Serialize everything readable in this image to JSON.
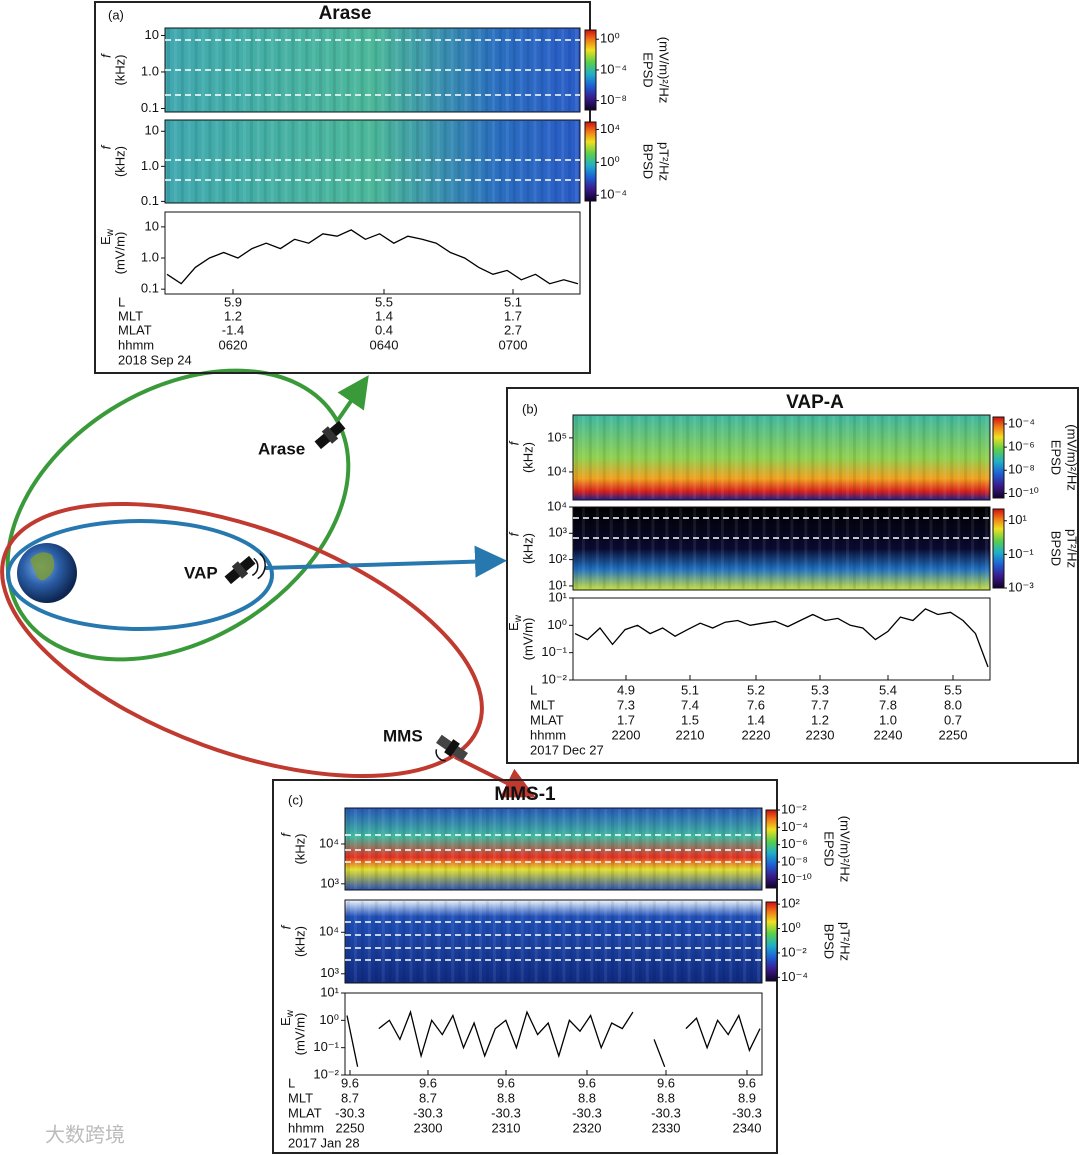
{
  "orbit": {
    "labels": [
      "Arase",
      "VAP",
      "MMS"
    ]
  },
  "watermark": "大数跨境",
  "panels": [
    {
      "tag": "(a)",
      "title": "Arase",
      "spectrograms": [
        {
          "ylabel": [
            "f",
            "(kHz)"
          ],
          "scale": "log",
          "ylim": [
            0.08,
            16
          ],
          "yticks": [
            0.1,
            {
              "value": 1,
              "label": "1.0"
            },
            10
          ],
          "colorbar": {
            "label": [
              "EPSD",
              "(mV/m)²/Hz"
            ],
            "clim": [
              6e-10,
              16
            ],
            "ticks": [
              {
                "value": 1,
                "label": "10⁰"
              },
              {
                "value": 0.0001,
                "label": "10⁻⁴"
              },
              {
                "value": 1e-08,
                "label": "10⁻⁸"
              }
            ]
          }
        },
        {
          "ylabel": [
            "f",
            "(kHz)"
          ],
          "scale": "log",
          "ylim": [
            0.09,
            21
          ],
          "yticks": [
            0.1,
            {
              "value": 1,
              "label": "1.0"
            },
            10
          ],
          "colorbar": {
            "label": [
              "BPSD",
              "pT²/Hz"
            ],
            "clim": [
              2e-05,
              80000
            ],
            "ticks": [
              {
                "value": 10000,
                "label": "10⁴"
              },
              {
                "value": 1,
                "label": "10⁰"
              },
              {
                "value": 0.0001,
                "label": "10⁻⁴"
              }
            ]
          }
        }
      ],
      "ew": {
        "ylabel": [
          "E",
          "w",
          "(mV/m)"
        ],
        "scale": "log",
        "ylim": [
          0.07,
          30
        ],
        "yticks": [
          0.1,
          {
            "value": 1,
            "label": "1.0"
          },
          10
        ],
        "values": [
          0.3,
          0.15,
          0.5,
          1,
          1.5,
          1,
          2,
          3,
          2,
          4,
          3,
          6,
          5,
          8,
          4,
          6,
          3,
          5,
          4,
          3,
          1.5,
          1,
          0.5,
          0.3,
          0.4,
          0.2,
          0.3,
          0.15,
          0.2,
          0.15
        ]
      },
      "rows": [
        {
          "label": "L",
          "values": [
            "5.9",
            "5.5",
            "5.1"
          ]
        },
        {
          "label": "MLT",
          "values": [
            "1.2",
            "1.4",
            "1.7"
          ]
        },
        {
          "label": "MLAT",
          "values": [
            "-1.4",
            "0.4",
            "2.7"
          ]
        },
        {
          "label": "hhmm",
          "values": [
            "0620",
            "0640",
            "0700"
          ]
        }
      ],
      "date": "2018 Sep 24"
    },
    {
      "tag": "(b)",
      "title": "VAP-A",
      "spectrograms": [
        {
          "ylabel": [
            "f",
            "(kHz)"
          ],
          "scale": "log",
          "ylim": [
            1500,
            470000
          ],
          "yticks": [
            {
              "value": 10000,
              "label": "10⁴"
            },
            {
              "value": 100000,
              "label": "10⁵"
            }
          ],
          "colorbar": {
            "label": [
              "EPSD",
              "(mV/m)²/Hz"
            ],
            "clim": [
              4e-11,
              0.0004
            ],
            "ticks": [
              {
                "value": 0.0001,
                "label": "10⁻⁴"
              },
              {
                "value": 1e-06,
                "label": "10⁻⁶"
              },
              {
                "value": 1e-08,
                "label": "10⁻⁸"
              },
              {
                "value": 1e-10,
                "label": "10⁻¹⁰"
              }
            ]
          }
        },
        {
          "ylabel": [
            "f",
            "(kHz)"
          ],
          "scale": "log",
          "ylim": [
            7,
            10000
          ],
          "yticks": [
            {
              "value": 10,
              "label": "10¹"
            },
            {
              "value": 100,
              "label": "10²"
            },
            {
              "value": 1000,
              "label": "10³"
            },
            {
              "value": 10000,
              "label": "10⁴"
            }
          ],
          "colorbar": {
            "label": [
              "BPSD",
              "pT²/Hz"
            ],
            "clim": [
              0.001,
              50
            ],
            "ticks": [
              {
                "value": 10,
                "label": "10¹"
              },
              {
                "value": 0.1,
                "label": "10⁻¹"
              },
              {
                "value": 0.001,
                "label": "10⁻³"
              }
            ]
          }
        }
      ],
      "ew": {
        "ylabel": [
          "E",
          "w",
          "(mV/m)"
        ],
        "scale": "log",
        "ylim": [
          0.01,
          10
        ],
        "yticks": [
          {
            "value": 0.01,
            "label": "10⁻²"
          },
          {
            "value": 0.1,
            "label": "10⁻¹"
          },
          {
            "value": 1,
            "label": "10⁰"
          },
          {
            "value": 10,
            "label": "10¹"
          }
        ],
        "values": [
          0.5,
          0.3,
          0.8,
          0.2,
          0.7,
          1,
          0.5,
          0.8,
          0.4,
          0.7,
          1.2,
          0.8,
          1.3,
          1.5,
          1,
          1.2,
          1.4,
          0.9,
          1.5,
          2.5,
          1.5,
          1.8,
          1,
          0.8,
          0.3,
          0.6,
          2,
          1.5,
          4,
          2.5,
          3,
          1.5,
          0.5,
          0.03
        ]
      },
      "rows": [
        {
          "label": "L",
          "values": [
            "4.9",
            "5.1",
            "5.2",
            "5.3",
            "5.4",
            "5.5"
          ]
        },
        {
          "label": "MLT",
          "values": [
            "7.3",
            "7.4",
            "7.6",
            "7.7",
            "7.8",
            "8.0"
          ]
        },
        {
          "label": "MLAT",
          "values": [
            "1.7",
            "1.5",
            "1.4",
            "1.2",
            "1.0",
            "0.7"
          ]
        },
        {
          "label": "hhmm",
          "values": [
            "2200",
            "2210",
            "2220",
            "2230",
            "2240",
            "2250"
          ]
        }
      ],
      "date": "2017 Dec 27"
    },
    {
      "tag": "(c)",
      "title": "MMS-1",
      "spectrograms": [
        {
          "ylabel": [
            "f",
            "(kHz)"
          ],
          "scale": "log",
          "ylim": [
            700,
            80000
          ],
          "yticks": [
            {
              "value": 1000,
              "label": "10³"
            },
            {
              "value": 10000,
              "label": "10⁴"
            }
          ],
          "colorbar": {
            "label": [
              "EPSD",
              "(mV/m)²/Hz"
            ],
            "clim": [
              1e-11,
              0.01
            ],
            "ticks": [
              {
                "value": 0.01,
                "label": "10⁻²"
              },
              {
                "value": 0.0001,
                "label": "10⁻⁴"
              },
              {
                "value": 1e-06,
                "label": "10⁻⁶"
              },
              {
                "value": 1e-08,
                "label": "10⁻⁸"
              },
              {
                "value": 1e-10,
                "label": "10⁻¹⁰"
              }
            ]
          }
        },
        {
          "ylabel": [
            "f",
            "(kHz)"
          ],
          "scale": "log",
          "ylim": [
            600,
            60000
          ],
          "yticks": [
            {
              "value": 1000,
              "label": "10³"
            },
            {
              "value": 10000,
              "label": "10⁴"
            }
          ],
          "colorbar": {
            "label": [
              "BPSD",
              "pT²/Hz"
            ],
            "clim": [
              5e-05,
              150
            ],
            "ticks": [
              {
                "value": 100,
                "label": "10²"
              },
              {
                "value": 1,
                "label": "10⁰"
              },
              {
                "value": 0.01,
                "label": "10⁻²"
              },
              {
                "value": 0.0001,
                "label": "10⁻⁴"
              }
            ]
          }
        }
      ],
      "ew": {
        "ylabel": [
          "E",
          "w",
          "(mV/m)"
        ],
        "scale": "log",
        "ylim": [
          0.01,
          10
        ],
        "yticks": [
          {
            "value": 0.01,
            "label": "10⁻²"
          },
          {
            "value": 0.1,
            "label": "10⁻¹"
          },
          {
            "value": 1,
            "label": "10⁰"
          },
          {
            "value": 10,
            "label": "10¹"
          }
        ],
        "values": [
          1.5,
          0.02,
          null,
          0.5,
          1,
          0.2,
          2,
          0.05,
          1,
          0.3,
          1.5,
          0.1,
          0.8,
          0.05,
          0.5,
          1,
          0.1,
          2,
          0.3,
          0.8,
          0.05,
          1,
          0.4,
          1.5,
          0.1,
          0.8,
          0.5,
          2,
          null,
          0.2,
          0.02,
          null,
          0.5,
          1.2,
          0.1,
          1,
          0.3,
          1.5,
          0.08,
          0.5
        ]
      },
      "rows": [
        {
          "label": "L",
          "values": [
            "9.6",
            "9.6",
            "9.6",
            "9.6",
            "9.6",
            "9.6"
          ]
        },
        {
          "label": "MLT",
          "values": [
            "8.7",
            "8.7",
            "8.8",
            "8.8",
            "8.8",
            "8.9"
          ]
        },
        {
          "label": "MLAT",
          "values": [
            "-30.3",
            "-30.3",
            "-30.3",
            "-30.3",
            "-30.3",
            "-30.3"
          ]
        },
        {
          "label": "hhmm",
          "values": [
            "2250",
            "2300",
            "2310",
            "2320",
            "2330",
            "2340"
          ]
        }
      ],
      "date": "2017 Jan 28"
    }
  ]
}
